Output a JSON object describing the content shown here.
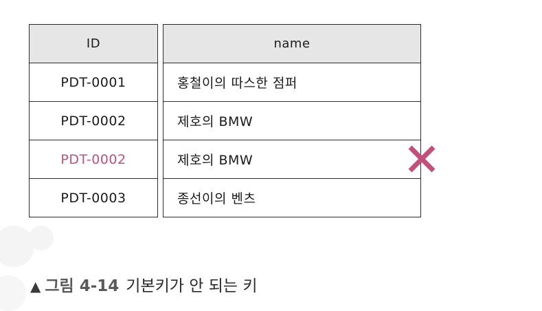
{
  "table": {
    "headers": {
      "id": "ID",
      "name": "name"
    },
    "rows": [
      {
        "id": "PDT-0001",
        "name": "홍철이의 따스한 점퍼",
        "duplicate": false
      },
      {
        "id": "PDT-0002",
        "name": "제호의 BMW",
        "duplicate": false
      },
      {
        "id": "PDT-0002",
        "name": "제호의 BMW",
        "duplicate": true
      },
      {
        "id": "PDT-0003",
        "name": "종선이의 벤츠",
        "duplicate": false
      }
    ]
  },
  "marker": {
    "icon": "x-mark-icon",
    "color": "#c2507a"
  },
  "caption": {
    "triangle": "▲",
    "figure_label": "그림 4-14",
    "text": "기본키가 안 되는 키"
  },
  "colors": {
    "header_bg": "#e6e6e6",
    "border": "#2b2b2b",
    "duplicate_text": "#c2507a"
  }
}
